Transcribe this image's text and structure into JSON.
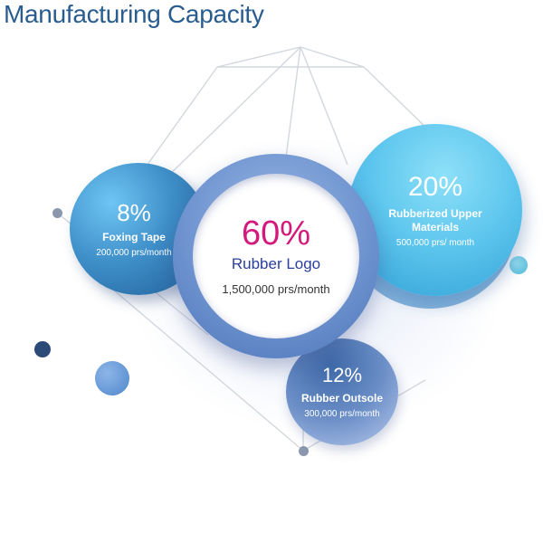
{
  "title": "Manufacturing Capacity",
  "segments": {
    "rubber_logo": {
      "percent": "60%",
      "name": "Rubber Logo",
      "capacity": "1,500,000 prs/month"
    },
    "rubberized_upper": {
      "percent": "20%",
      "name": "Rubberized Upper Materials",
      "capacity": "500,000 prs/ month"
    },
    "outsole": {
      "percent": "12%",
      "name": "Rubber Outsole",
      "capacity": "300,000 prs/month"
    },
    "foxing_tape": {
      "percent": "8%",
      "name": "Foxing Tape",
      "capacity": "200,000 prs/month"
    }
  },
  "colors": {
    "title": "#2a5d8f",
    "center_percent": "#d4197d",
    "center_name": "#2a3f9e",
    "upper_bubble": "#5fc7ee",
    "foxing_bubble": "#3f8fc9",
    "outsole_bubble": "#6a8dc6",
    "ring": "#6e93cf"
  }
}
